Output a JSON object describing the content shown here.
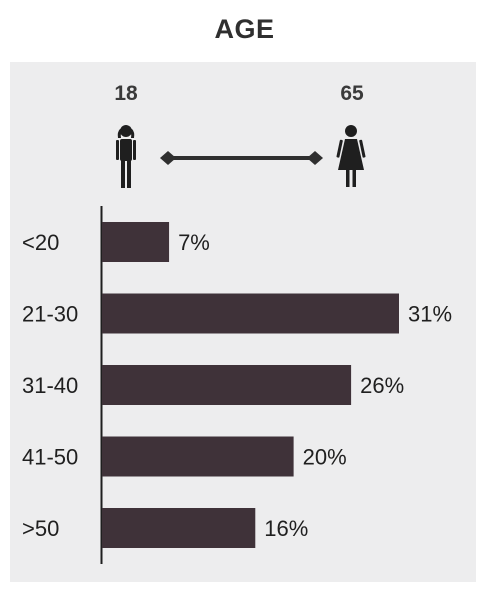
{
  "title": "AGE",
  "range": {
    "min_label": "18",
    "max_label": "65"
  },
  "icons": {
    "min": "young-woman-icon",
    "max": "woman-in-dress-icon",
    "connector": "double-ended-arrow-icon"
  },
  "colors": {
    "bar": "#3f3239",
    "panel": "#ededee",
    "axis": "#1f1f1f",
    "title": "#2f2f2f"
  },
  "chart_data": {
    "type": "bar",
    "orientation": "horizontal",
    "title": "AGE",
    "categories": [
      "<20",
      "21-30",
      "31-40",
      "41-50",
      ">50"
    ],
    "values": [
      7,
      31,
      26,
      20,
      16
    ],
    "value_labels": [
      "7%",
      "31%",
      "26%",
      "20%",
      "16%"
    ],
    "xlim": [
      0,
      32
    ],
    "grid": false,
    "legend": "none"
  }
}
